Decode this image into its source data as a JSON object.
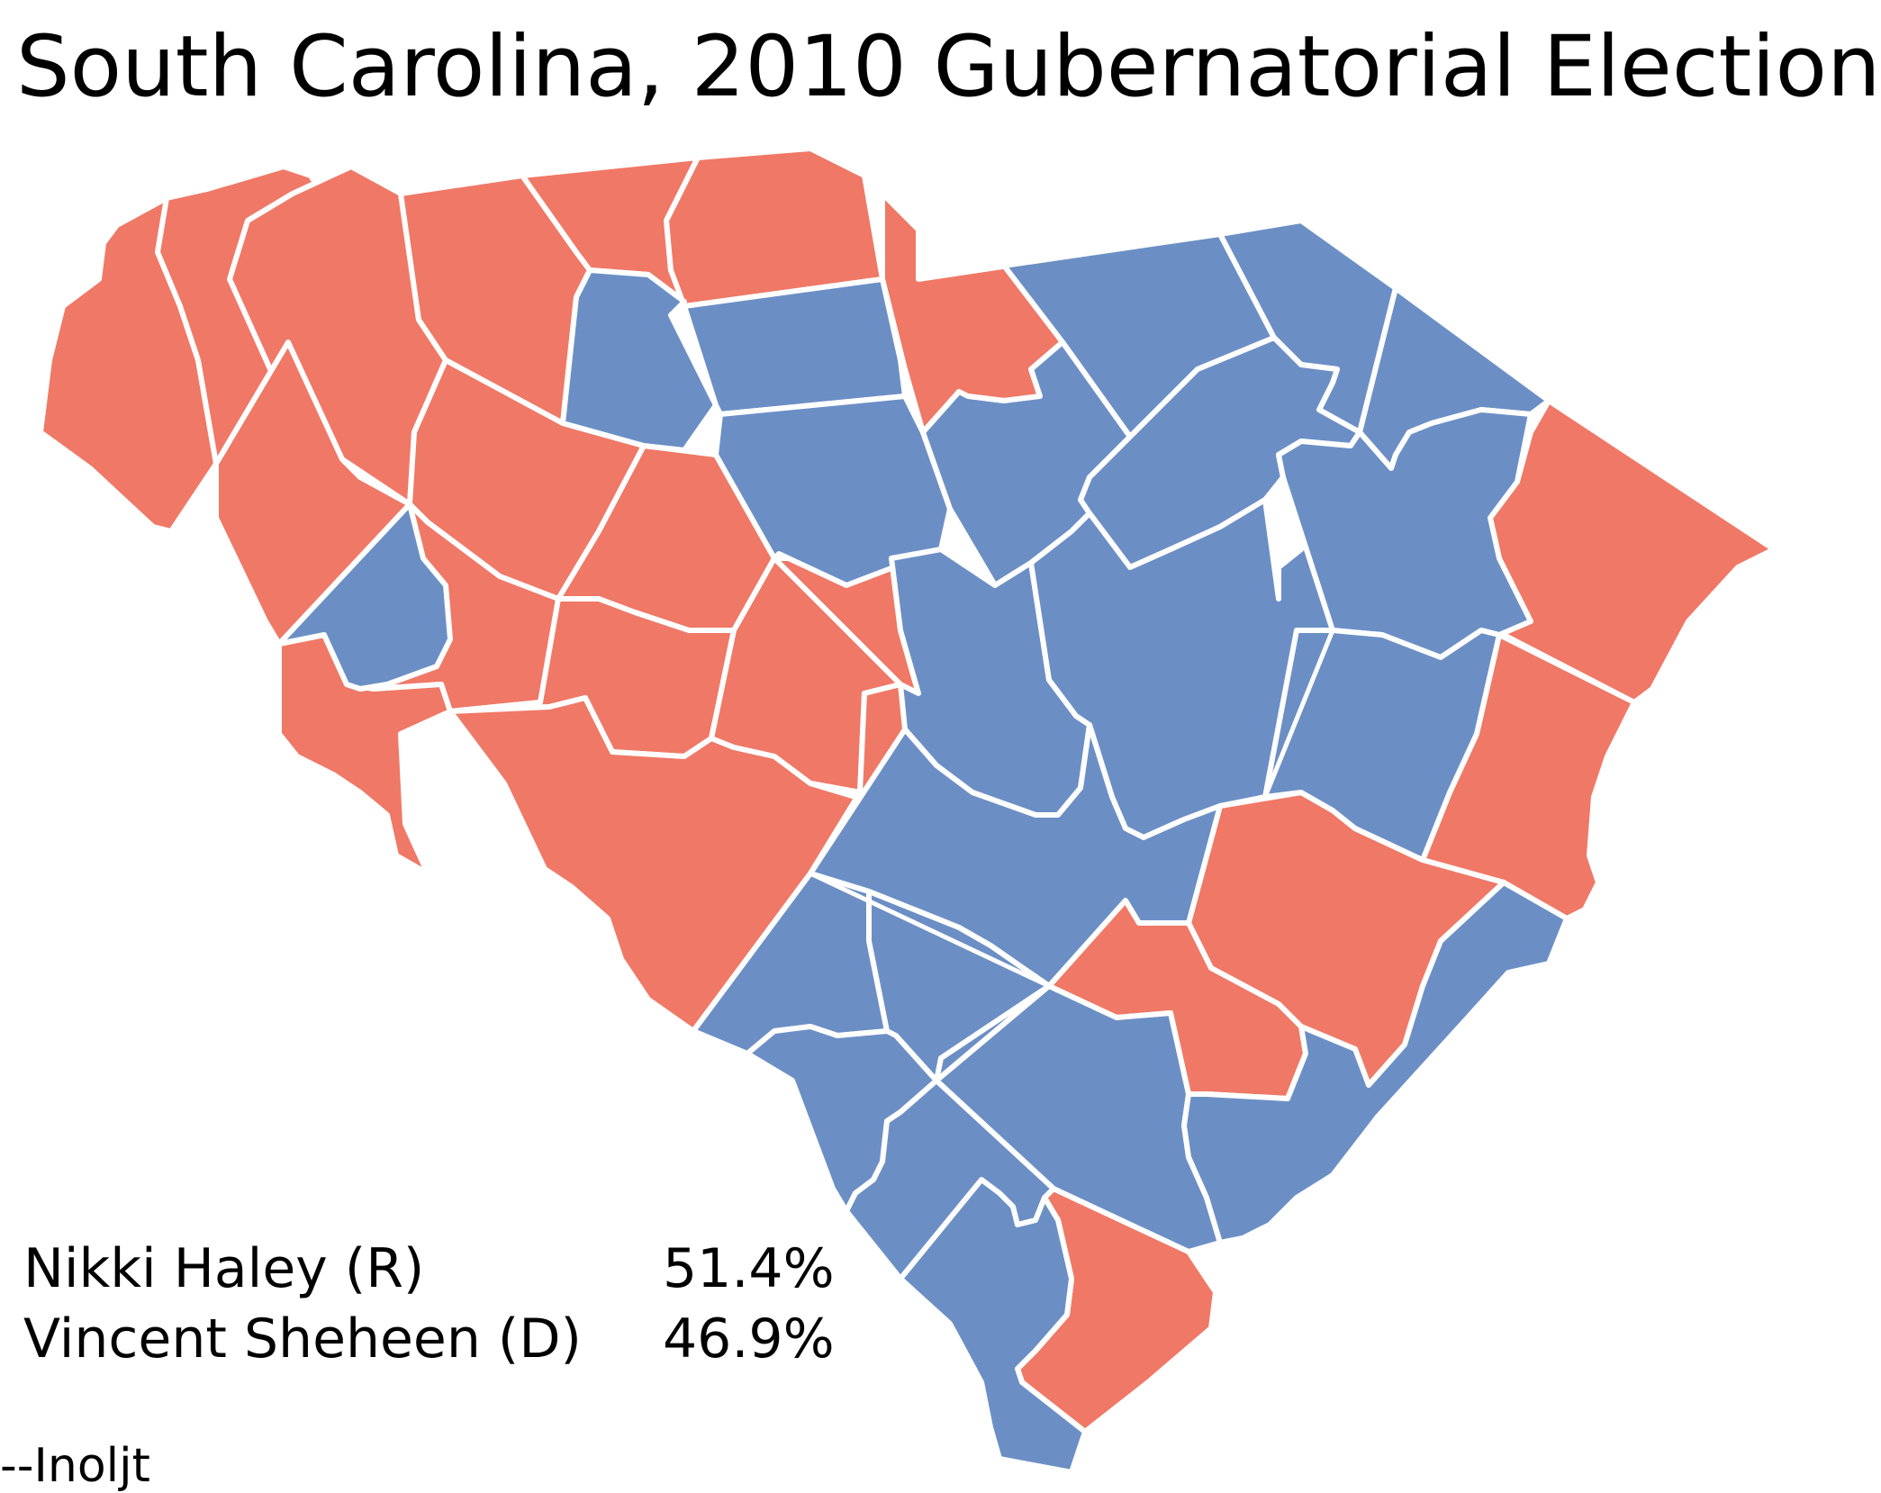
{
  "title": "South Carolina, 2010 Gubernatorial Election",
  "colors": {
    "republican": "#f07866",
    "democrat": "#6b8fc5",
    "border": "#ffffff"
  },
  "results": [
    {
      "candidate": "Nikki Haley (R)",
      "percent": "51.4%"
    },
    {
      "candidate": "Vincent Sheheen (D)",
      "percent": "46.9%"
    }
  ],
  "credit": "--Inoljt"
}
